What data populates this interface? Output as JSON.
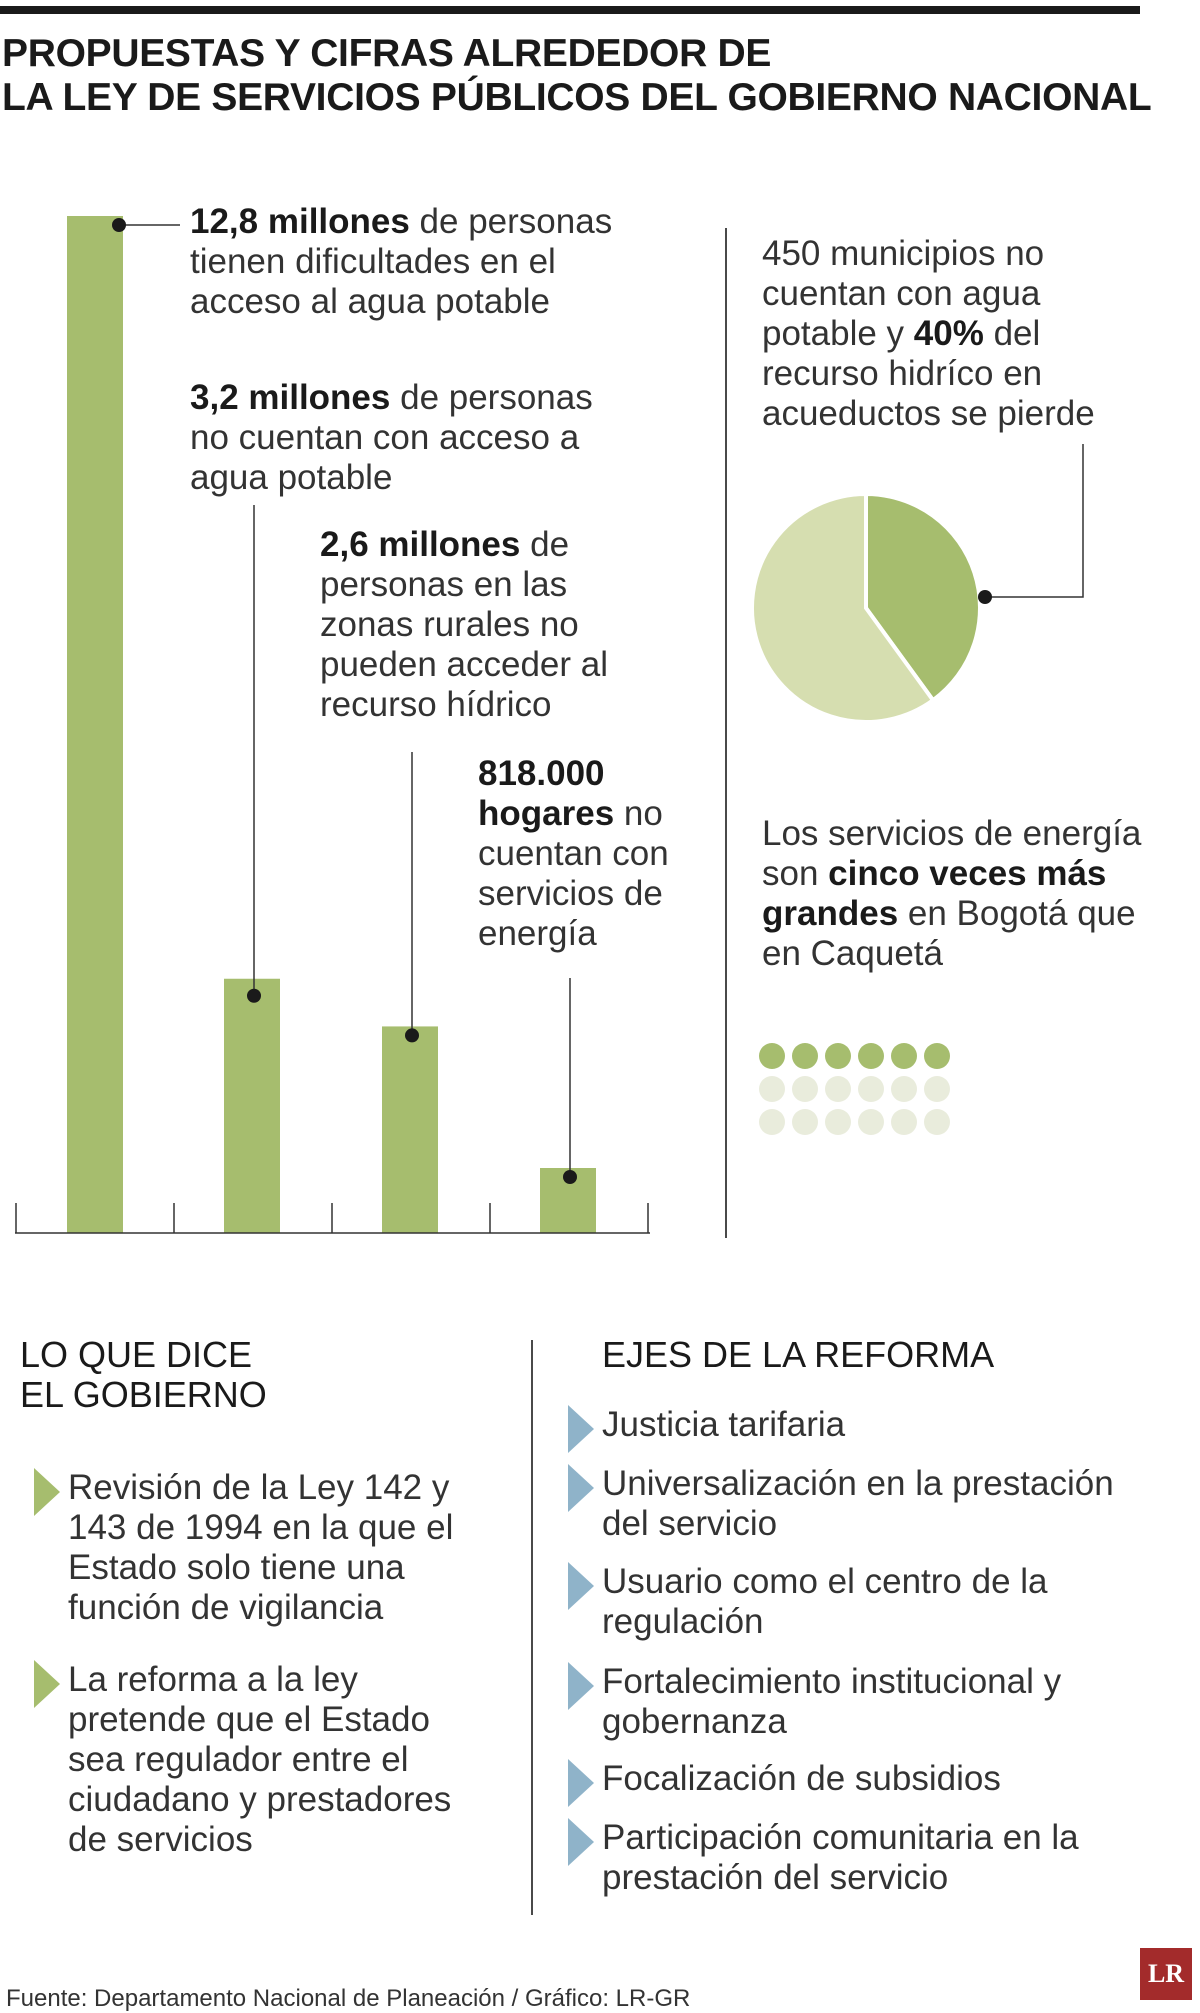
{
  "header": {
    "title_line1": "PROPUESTAS Y CIFRAS ALREDEDOR DE",
    "title_line2": "LA LEY DE SERVICIOS PÚBLICOS DEL GOBIERNO NACIONAL"
  },
  "chart_data": [
    {
      "type": "bar",
      "title": "",
      "categories": [
        "personas con dificultades de acceso",
        "personas sin acceso",
        "personas zonas rurales",
        "hogares sin energía"
      ],
      "values": [
        12.8,
        3.2,
        2.6,
        0.818
      ],
      "unit": "millones",
      "ylim": [
        0,
        12.8
      ],
      "annotations": [
        {
          "bold": "12,8 millones",
          "rest": " de personas tienen dificultades en el acceso al agua potable"
        },
        {
          "bold": "3,2 millones",
          "rest": " de personas no cuentan con acceso a agua potable"
        },
        {
          "bold": "2,6 millones",
          "rest": " de personas en las zonas rurales no pueden acceder al recurso hídrico"
        },
        {
          "bold": "818.000 hogares",
          "rest": " no cuentan con servicios de energía"
        }
      ]
    },
    {
      "type": "pie",
      "slices": [
        {
          "label": "recurso hídrico perdido",
          "value": 40,
          "color": "#a6bd6e"
        },
        {
          "label": "resto",
          "value": 60,
          "color": "#d6deb0"
        }
      ]
    },
    {
      "type": "table",
      "label": "comparación energía Bogotá vs Caquetá",
      "highlighted": 6,
      "faded": 12,
      "highlight_color": "#a6bd6e",
      "faded_color": "#e9ecdc"
    }
  ],
  "pie_text": {
    "part1": "450 municipios no cuentan con agua potable y ",
    "bold": "40%",
    "part2": " del recurso hidríco en acueductos se pierde"
  },
  "energy_text": {
    "part1": "Los servicios de energía son ",
    "bold": "cinco veces más grandes",
    "part2": " en Bogotá que en Caquetá"
  },
  "gobierno": {
    "heading_line1": "LO QUE DICE",
    "heading_line2": "EL GOBIERNO",
    "items": [
      "Revisión de la Ley 142 y 143 de 1994 en la que el Estado solo tiene una función de vigilancia",
      "La reforma a la ley pretende que el Estado sea regulador entre el ciudadano y prestadores de servicios"
    ]
  },
  "ejes": {
    "heading": "EJES DE LA REFORMA",
    "items": [
      "Justicia tarifaria",
      "Universalización en la prestación del servicio",
      "Usuario como el centro de la regulación",
      "Fortalecimiento institucional y gobernanza",
      "Focalización de subsidios",
      "Participación comunitaria en la prestación del servicio"
    ]
  },
  "footer": {
    "source": "Fuente: Departamento Nacional de Planeación / Gráfico: LR-GR",
    "logo": "LR"
  },
  "colors": {
    "bar": "#a6bd6e",
    "pie_dark": "#a6bd6e",
    "pie_light": "#d6deb0",
    "arrow_green": "#a6bd6e",
    "arrow_blue": "#8fb3c9"
  }
}
